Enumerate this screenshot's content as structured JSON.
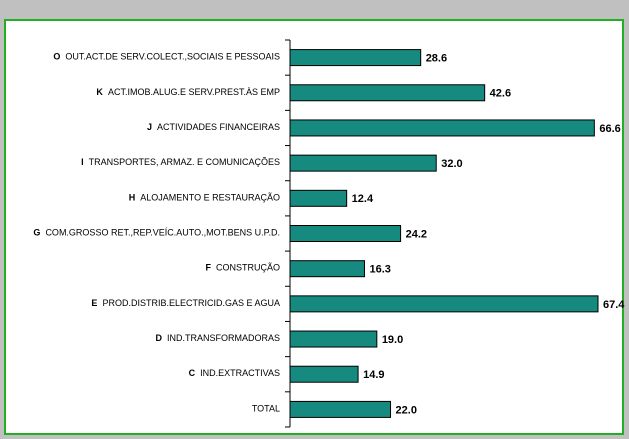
{
  "chart_data": {
    "type": "barh",
    "codes": [
      "O",
      "K",
      "J",
      "I",
      "H",
      "G",
      "F",
      "E",
      "D",
      "C",
      null
    ],
    "categories": [
      "OUT.ACT.DE SERV.COLECT.,SOCIAIS E PESSOAIS",
      "ACT.IMOB.ALUG.E SERV.PREST.ÀS EMP",
      "ACTIVIDADES FINANCEIRAS",
      "TRANSPORTES, ARMAZ. E COMUNICAÇÕES",
      "ALOJAMENTO E RESTAURAÇÃO",
      "COM.GROSSO RET.,REP.VEÍC.AUTO.,MOT.BENS U.P.D.",
      "CONSTRUÇÃO",
      "PROD.DISTRIB.ELECTRICID.GAS E AGUA",
      "IND.TRANSFORMADORAS",
      "IND.EXTRACTIVAS",
      "TOTAL"
    ],
    "values": [
      28.6,
      42.6,
      66.6,
      32.0,
      12.4,
      24.2,
      16.3,
      67.4,
      19.0,
      14.9,
      22.0
    ],
    "value_labels": [
      "28.6",
      "42.6",
      "66.6",
      "32.0",
      "12.4",
      "24.2",
      "16.3",
      "67.4",
      "19.0",
      "14.9",
      "22.0"
    ],
    "color": "#178a80"
  }
}
